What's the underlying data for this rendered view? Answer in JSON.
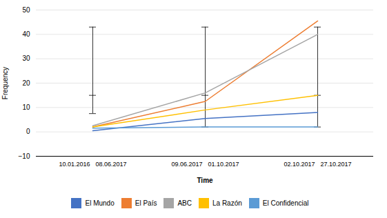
{
  "chart_data": {
    "type": "line",
    "categories": [
      [
        "10.01.2016",
        "08.06.2017"
      ],
      [
        "09.06.2017",
        "01.10.2017"
      ],
      [
        "02.10.2017",
        "27.10.2017"
      ]
    ],
    "series": [
      {
        "name": "El Mundo",
        "color": "#4472C4",
        "values": [
          0.5,
          5.5,
          8.0
        ]
      },
      {
        "name": "El País",
        "color": "#ED7D31",
        "values": [
          2.0,
          12.5,
          45.5
        ]
      },
      {
        "name": "ABC",
        "color": "#A5A5A5",
        "values": [
          2.5,
          16.0,
          40.0
        ]
      },
      {
        "name": "La Razón",
        "color": "#FFC000",
        "values": [
          2.0,
          9.0,
          15.0
        ]
      },
      {
        "name": "El Confidencial",
        "color": "#5B9BD5",
        "values": [
          1.5,
          2.0,
          2.0
        ]
      }
    ],
    "vlines": [
      {
        "y_bottom": 7.5,
        "y_top": 43,
        "y_mid": 15
      },
      {
        "y_bottom": 2.0,
        "y_top": 43,
        "y_mid": 15
      },
      {
        "y_bottom": 2.0,
        "y_top": 43,
        "y_mid": 15
      }
    ],
    "ylim": [
      -10,
      50
    ],
    "yticks": [
      -10,
      0,
      10,
      20,
      30,
      40,
      50
    ],
    "ylabel": "Frequency",
    "xlabel": "Time",
    "grid": true,
    "legend": "bottom"
  }
}
